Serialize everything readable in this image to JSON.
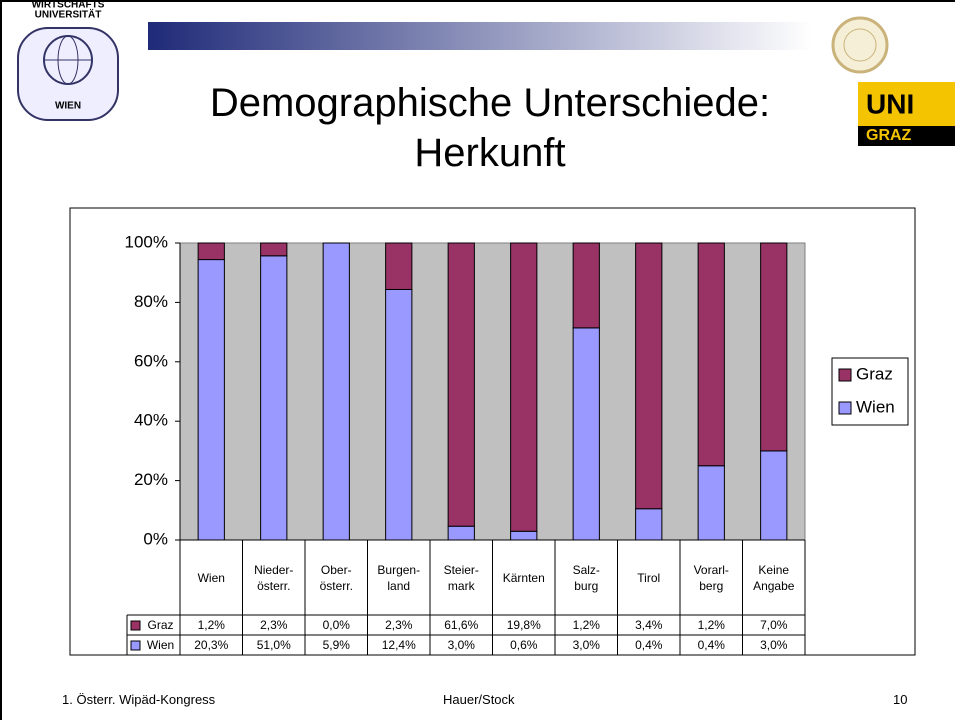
{
  "slide": {
    "title": "Demographische Unterschiede:\nHerkunft",
    "logo_left": {
      "top": "WIRTSCHAFTS",
      "middle": "UNIVERSITÄT",
      "bottom": "WIEN"
    },
    "logo_right": {
      "top": "UNI",
      "bottom": "GRAZ"
    },
    "footer": {
      "left": "1. Österr. Wipäd-Kongress",
      "center": "Hauer/Stock",
      "page": "10"
    }
  },
  "chart_data": {
    "type": "bar",
    "stacking": "percent",
    "categories": [
      "Wien",
      "Nieder-\nösterr.",
      "Ober-\nösterr.",
      "Burgen-\nland",
      "Steier-\nmark",
      "Kärnten",
      "Salz-\nburg",
      "Tirol",
      "Vorarl-\nberg",
      "Keine\nAngabe"
    ],
    "series": [
      {
        "name": "Graz",
        "color": "#993366",
        "values": [
          1.2,
          2.3,
          0.0,
          2.3,
          61.6,
          19.8,
          1.2,
          3.4,
          1.2,
          7.0
        ],
        "value_labels": [
          "1,2%",
          "2,3%",
          "0,0%",
          "2,3%",
          "61,6%",
          "19,8%",
          "1,2%",
          "3,4%",
          "1,2%",
          "7,0%"
        ]
      },
      {
        "name": "Wien",
        "color": "#9999ff",
        "values": [
          20.3,
          51.0,
          5.9,
          12.4,
          3.0,
          0.6,
          3.0,
          0.4,
          0.4,
          3.0
        ],
        "value_labels": [
          "20,3%",
          "51,0%",
          "5,9%",
          "12,4%",
          "3,0%",
          "0,6%",
          "3,0%",
          "0,4%",
          "0,4%",
          "3,0%"
        ]
      }
    ],
    "ylim": [
      0,
      100
    ],
    "yticks": [
      {
        "value": 0,
        "label": "0%"
      },
      {
        "value": 20,
        "label": "20%"
      },
      {
        "value": 40,
        "label": "40%"
      },
      {
        "value": 60,
        "label": "60%"
      },
      {
        "value": 80,
        "label": "80%"
      },
      {
        "value": 100,
        "label": "100%"
      }
    ],
    "plot_background": "#c0c0c0",
    "legend": "right",
    "data_table": true
  }
}
